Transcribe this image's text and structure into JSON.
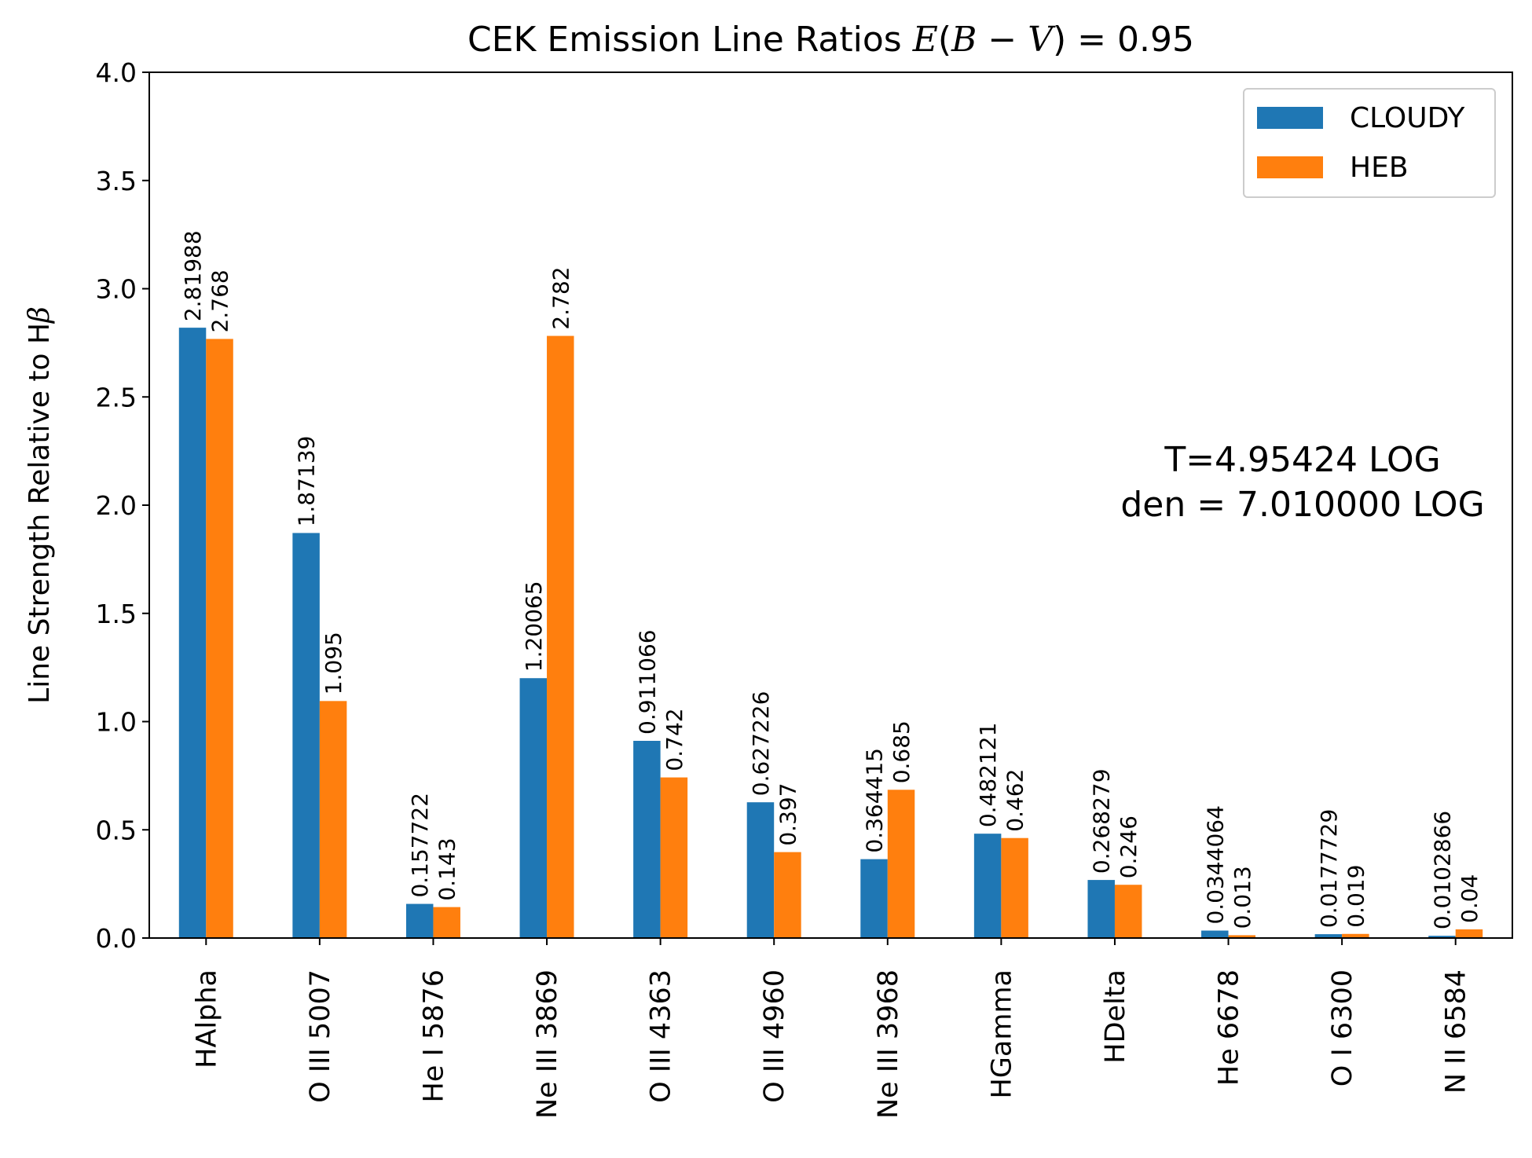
{
  "chart_data": {
    "type": "bar",
    "title": {
      "prefix": "CEK Emission Line Ratios ",
      "math_e": "E",
      "math_open": "(",
      "math_b": "B",
      "math_minus": " − ",
      "math_v": "V",
      "math_close": ")",
      "suffix": " = 0.95"
    },
    "xlabel": "",
    "ylabel": {
      "text": "Line Strength Relative to H",
      "symbol": "β"
    },
    "ylim": [
      0,
      4.0
    ],
    "yticks": [
      "0.0",
      "0.5",
      "1.0",
      "1.5",
      "2.0",
      "2.5",
      "3.0",
      "3.5",
      "4.0"
    ],
    "categories": [
      "HAlpha",
      "O III 5007",
      "He I 5876",
      "Ne III 3869",
      "O III 4363",
      "O III 4960",
      "Ne III 3968",
      "HGamma",
      "HDelta",
      "He 6678",
      "O I 6300",
      "N II 6584"
    ],
    "series": [
      {
        "name": "CLOUDY",
        "color": "#1f77b4",
        "values": [
          2.81988,
          1.87139,
          0.157722,
          1.20065,
          0.911066,
          0.627226,
          0.364415,
          0.482121,
          0.268279,
          0.0344064,
          0.0177729,
          0.0102866
        ],
        "labels": [
          "2.81988",
          "1.87139",
          "0.157722",
          "1.20065",
          "0.911066",
          "0.627226",
          "0.364415",
          "0.482121",
          "0.268279",
          "0.0344064",
          "0.0177729",
          "0.0102866"
        ]
      },
      {
        "name": "HEB",
        "color": "#ff7f0e",
        "values": [
          2.768,
          1.095,
          0.143,
          2.782,
          0.742,
          0.397,
          0.685,
          0.462,
          0.246,
          0.013,
          0.019,
          0.04
        ],
        "labels": [
          "2.768",
          "1.095",
          "0.143",
          "2.782",
          "0.742",
          "0.397",
          "0.685",
          "0.462",
          "0.246",
          "0.013",
          "0.019",
          "0.04"
        ]
      }
    ],
    "legend": "top-right",
    "grid": false,
    "annotation": [
      "T=4.95424 LOG",
      "den = 7.010000 LOG"
    ]
  }
}
